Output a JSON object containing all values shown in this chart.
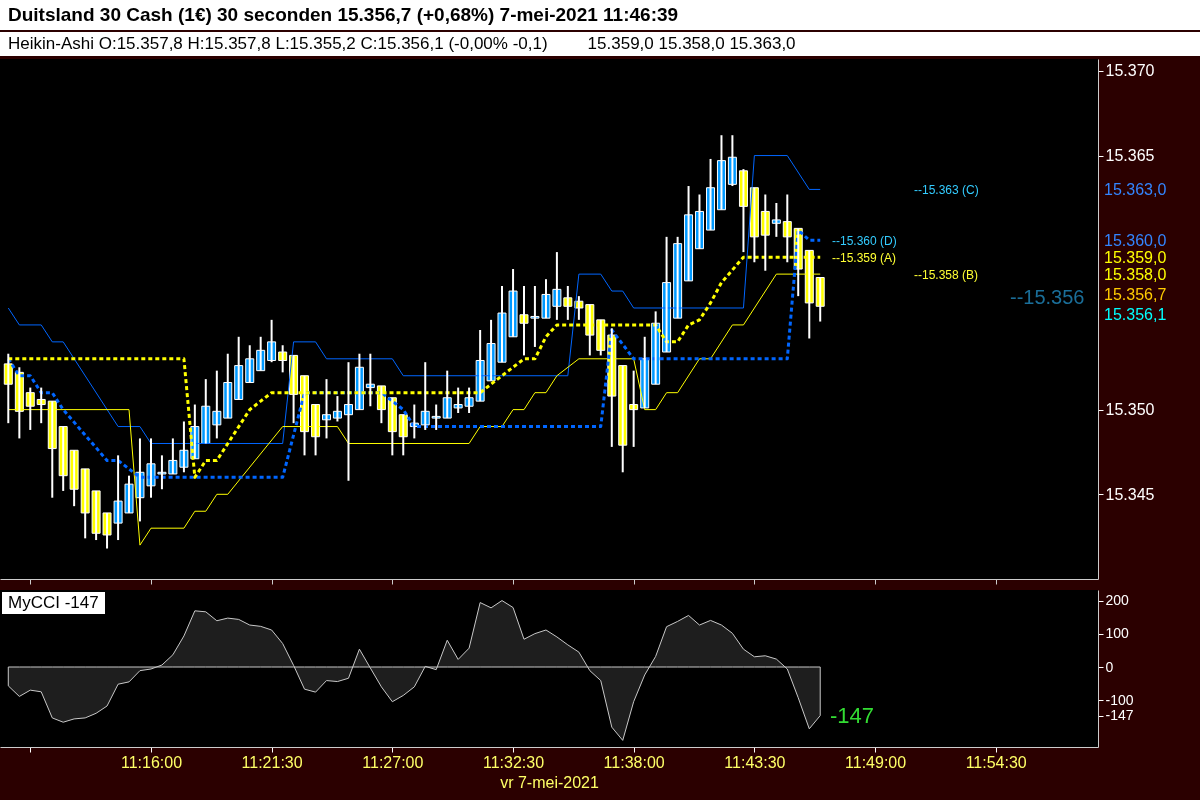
{
  "chart_data": [
    {
      "type": "candlestick",
      "title": "Duitsland 30 Cash (1€) 30 seconden 15.356,7 (+0,68%) 7-mei-2021 11:46:39",
      "xlim": [
        11.152,
        11.986
      ],
      "ylim": [
        15340,
        15370.7
      ],
      "xticks": [
        {
          "value": 11.175,
          "label": null
        },
        {
          "value": 11.2667,
          "label": null
        },
        {
          "value": 11.3583,
          "label": null
        },
        {
          "value": 11.45,
          "label": null
        },
        {
          "value": 11.5417,
          "label": null
        },
        {
          "value": 11.6333,
          "label": null
        },
        {
          "value": 11.725,
          "label": null
        },
        {
          "value": 11.8167,
          "label": null
        },
        {
          "value": 11.9083,
          "label": null
        }
      ],
      "yticks": [
        {
          "value": 15345,
          "label": "15.345"
        },
        {
          "value": 15350,
          "label": "15.350"
        },
        {
          "value": 15365,
          "label": "15.365"
        },
        {
          "value": 15370,
          "label": "15.370"
        }
      ],
      "tick_labels": "y",
      "annotations": [
        "Heikin-Ashi O:15.357,8 H:15.357,8 L:15.355,2 C:15.356,1 (-0,00% -0,1)",
        "15.359,0 15.358,0 15.363,0",
        "--15.363 (C)",
        "--15.360 (D)",
        "--15.359 (A)",
        "--15.358 (B)",
        "--15.356",
        "15.363,0",
        "15.360,0",
        "15.359,0",
        "15.358,0",
        "15.356,7",
        "15.356,1"
      ],
      "series": [
        {
          "color": "#0099ff",
          "x": [
            11.2417,
            11.25,
            11.2583,
            11.2667,
            11.275,
            11.2833,
            11.2917,
            11.3,
            11.3083,
            11.3167,
            11.325,
            11.3333,
            11.3417,
            11.35,
            11.3583,
            11.4,
            11.4083,
            11.4167,
            11.425,
            11.4333,
            11.4667,
            11.475,
            11.4833,
            11.4917,
            11.5,
            11.5083,
            11.5167,
            11.525,
            11.5333,
            11.5417,
            11.5583,
            11.5667,
            11.575,
            11.6417,
            11.65,
            11.6583,
            11.6667,
            11.675,
            11.6833,
            11.6917,
            11.7,
            11.7083,
            11.7417
          ],
          "ohlc": [
            [
              15343.3,
              15347.3,
              15342.3,
              15344.6
            ],
            [
              15343.9,
              15346.1,
              15343.9,
              15345.6
            ],
            [
              15344.8,
              15348.3,
              15343.4,
              15346.3
            ],
            [
              15345.5,
              15348.3,
              15344.8,
              15346.8
            ],
            [
              15346.2,
              15347.3,
              15345.3,
              15346.3
            ],
            [
              15346.2,
              15348.3,
              15346.2,
              15347.0
            ],
            [
              15346.6,
              15349.3,
              15346.3,
              15347.6
            ],
            [
              15347.1,
              15350.3,
              15347.1,
              15349.0
            ],
            [
              15348.0,
              15351.8,
              15348.0,
              15350.2
            ],
            [
              15349.1,
              15352.3,
              15348.3,
              15349.9
            ],
            [
              15349.5,
              15353.3,
              15349.5,
              15351.6
            ],
            [
              15350.6,
              15354.3,
              15350.6,
              15352.6
            ],
            [
              15351.6,
              15353.8,
              15351.6,
              15353.0
            ],
            [
              15352.3,
              15354.3,
              15352.3,
              15353.5
            ],
            [
              15352.9,
              15355.3,
              15352.8,
              15354.0
            ],
            [
              15349.4,
              15351.8,
              15348.3,
              15349.7
            ],
            [
              15349.5,
              15350.8,
              15349.3,
              15349.9
            ],
            [
              15349.7,
              15352.8,
              15345.8,
              15350.3
            ],
            [
              15350.0,
              15353.3,
              15350.0,
              15352.5
            ],
            [
              15351.3,
              15353.3,
              15350.2,
              15351.5
            ],
            [
              15349.0,
              15350.3,
              15348.3,
              15349.2
            ],
            [
              15349.1,
              15352.8,
              15348.8,
              15349.9
            ],
            [
              15349.5,
              15350.3,
              15348.8,
              15349.6
            ],
            [
              15349.5,
              15352.3,
              15349.5,
              15350.7
            ],
            [
              15350.1,
              15351.3,
              15349.8,
              15350.3
            ],
            [
              15350.2,
              15351.3,
              15349.8,
              15350.7
            ],
            [
              15350.5,
              15354.7,
              15350.5,
              15352.9
            ],
            [
              15351.7,
              15355.3,
              15351.7,
              15353.9
            ],
            [
              15352.8,
              15357.3,
              15352.8,
              15355.7
            ],
            [
              15354.3,
              15358.3,
              15354.3,
              15357.0
            ],
            [
              15355.4,
              15357.3,
              15353.7,
              15355.5
            ],
            [
              15355.4,
              15357.7,
              15355.4,
              15356.8
            ],
            [
              15356.1,
              15359.3,
              15355.3,
              15357.1
            ],
            [
              15350.1,
              15354.3,
              15350.1,
              15353.0
            ],
            [
              15351.5,
              15355.8,
              15351.5,
              15355.1
            ],
            [
              15353.4,
              15360.2,
              15353.4,
              15357.5
            ],
            [
              15355.4,
              15360.2,
              15355.4,
              15359.8
            ],
            [
              15357.6,
              15363.2,
              15357.6,
              15361.5
            ],
            [
              15359.5,
              15362.7,
              15359.5,
              15361.7
            ],
            [
              15360.6,
              15364.8,
              15360.6,
              15363.1
            ],
            [
              15361.8,
              15366.2,
              15361.8,
              15364.7
            ],
            [
              15363.3,
              15366.2,
              15363.2,
              15364.9
            ],
            [
              15361.0,
              15362.2,
              15360.2,
              15361.2
            ]
          ]
        },
        {
          "color": "#ffff00",
          "x": [
            11.1583,
            11.1667,
            11.175,
            11.1833,
            11.1917,
            11.2,
            11.2083,
            11.2167,
            11.225,
            11.2333,
            11.3667,
            11.375,
            11.3833,
            11.3917,
            11.4417,
            11.45,
            11.4583,
            11.55,
            11.5833,
            11.5917,
            11.6,
            11.6083,
            11.6167,
            11.625,
            11.6333,
            11.7167,
            11.725,
            11.7333,
            11.75,
            11.7583,
            11.7667,
            11.775
          ],
          "ohlc": [
            [
              15352.7,
              15353.3,
              15349.2,
              15351.5
            ],
            [
              15352.2,
              15352.5,
              15348.3,
              15349.9
            ],
            [
              15351.0,
              15351.3,
              15348.8,
              15350.2
            ],
            [
              15350.6,
              15351.3,
              15349.2,
              15350.3
            ],
            [
              15350.5,
              15350.5,
              15344.8,
              15347.7
            ],
            [
              15349.0,
              15349.0,
              15345.2,
              15346.1
            ],
            [
              15347.6,
              15347.6,
              15344.3,
              15345.3
            ],
            [
              15346.5,
              15346.5,
              15342.4,
              15343.9
            ],
            [
              15345.2,
              15345.2,
              15342.3,
              15342.7
            ],
            [
              15343.9,
              15343.9,
              15341.8,
              15342.6
            ],
            [
              15353.4,
              15353.8,
              15352.2,
              15352.9
            ],
            [
              15353.2,
              15353.2,
              15349.2,
              15350.9
            ],
            [
              15352.0,
              15352.0,
              15347.3,
              15348.7
            ],
            [
              15350.3,
              15350.3,
              15347.3,
              15348.4
            ],
            [
              15351.4,
              15351.4,
              15349.2,
              15350.0
            ],
            [
              15350.7,
              15350.7,
              15347.3,
              15348.7
            ],
            [
              15349.7,
              15349.7,
              15347.3,
              15348.4
            ],
            [
              15355.6,
              15357.3,
              15353.2,
              15355.1
            ],
            [
              15356.6,
              15357.3,
              15355.3,
              15356.1
            ],
            [
              15356.4,
              15356.7,
              15355.3,
              15356.0
            ],
            [
              15356.2,
              15356.2,
              15353.2,
              15354.4
            ],
            [
              15355.3,
              15355.3,
              15353.2,
              15353.5
            ],
            [
              15354.4,
              15354.8,
              15347.8,
              15350.8
            ],
            [
              15352.6,
              15352.6,
              15346.3,
              15347.9
            ],
            [
              15350.3,
              15352.3,
              15347.8,
              15350.0
            ],
            [
              15364.1,
              15364.2,
              15359.3,
              15362.0
            ],
            [
              15363.1,
              15363.1,
              15358.7,
              15360.2
            ],
            [
              15361.7,
              15362.7,
              15358.2,
              15360.3
            ],
            [
              15361.1,
              15362.7,
              15358.7,
              15360.2
            ],
            [
              15360.7,
              15360.7,
              15356.7,
              15358.3
            ],
            [
              15359.4,
              15359.4,
              15354.2,
              15356.3
            ],
            [
              15357.8,
              15357.8,
              15355.2,
              15356.1
            ]
          ]
        },
        {
          "type": "line",
          "color": "#0066ff",
          "line_style": "solid",
          "x": [
            11.1583,
            11.1667,
            11.1833,
            11.1917,
            11.2,
            11.2417,
            11.2583,
            11.2667,
            11.3667,
            11.375,
            11.3917,
            11.4,
            11.45,
            11.4583,
            11.5833,
            11.5917,
            11.6083,
            11.6167,
            11.625,
            11.6333,
            11.7167,
            11.725,
            11.75,
            11.7667,
            11.775
          ],
          "values": [
            15356,
            15355,
            15355,
            15354,
            15354,
            15349,
            15349,
            15348,
            15348,
            15354,
            15354,
            15353,
            15353,
            15352,
            15352,
            15358,
            15358,
            15357,
            15357,
            15356,
            15356,
            15365,
            15365,
            15363,
            15363
          ]
        },
        {
          "type": "line",
          "color": "#ffff00",
          "line_style": "solid",
          "x": [
            11.1583,
            11.25,
            11.2583,
            11.2667,
            11.2917,
            11.3,
            11.3083,
            11.3167,
            11.325,
            11.3667,
            11.4083,
            11.4167,
            11.5083,
            11.5167,
            11.5333,
            11.5417,
            11.55,
            11.5583,
            11.5667,
            11.575,
            11.5917,
            11.6333,
            11.6417,
            11.65,
            11.6583,
            11.6667,
            11.6833,
            11.6917,
            11.7083,
            11.7167,
            11.7417,
            11.775
          ],
          "values": [
            15350,
            15350,
            15342,
            15343,
            15343,
            15344,
            15344,
            15345,
            15345,
            15349,
            15349,
            15348,
            15348,
            15349,
            15349,
            15350,
            15350,
            15351,
            15351,
            15352,
            15353,
            15353,
            15350,
            15350,
            15351,
            15351,
            15353,
            15353,
            15355,
            15355,
            15358,
            15358
          ]
        },
        {
          "type": "line",
          "color": "#0066ff",
          "line_style": "dashed",
          "x": [
            11.1583,
            11.1667,
            11.175,
            11.1833,
            11.1917,
            11.2,
            11.2333,
            11.2417,
            11.2583,
            11.3667,
            11.3833,
            11.4417,
            11.4583,
            11.4667,
            11.6083,
            11.6167,
            11.6333,
            11.75,
            11.7583,
            11.7667,
            11.775
          ],
          "values": [
            15353,
            15352,
            15352,
            15351,
            15351,
            15350,
            15347,
            15347,
            15346,
            15346,
            15351,
            15351,
            15350,
            15349,
            15349,
            15354.7,
            15353,
            15353,
            15360.6,
            15360,
            15360
          ]
        },
        {
          "type": "line",
          "color": "#ffff00",
          "line_style": "dashed",
          "x": [
            11.1583,
            11.2917,
            11.3,
            11.3083,
            11.3167,
            11.3417,
            11.3583,
            11.5167,
            11.5333,
            11.5417,
            11.55,
            11.5583,
            11.5667,
            11.575,
            11.65,
            11.6583,
            11.6667,
            11.675,
            11.6833,
            11.6917,
            11.7,
            11.7167,
            11.775
          ],
          "values": [
            15353,
            15353,
            15346,
            15347,
            15347,
            15350,
            15351,
            15351,
            15352,
            15352.5,
            15353,
            15353,
            15354.3,
            15355,
            15355,
            15354,
            15354,
            15355,
            15355.3,
            15356.3,
            15357.5,
            15359,
            15359
          ]
        }
      ]
    },
    {
      "type": "area",
      "xlabel": "vr 7-mei-2021",
      "color": "#c8c8c8",
      "xlim": [
        11.152,
        11.986
      ],
      "ylim": [
        -242,
        233
      ],
      "xticks": [
        {
          "value": 11.175,
          "label": null
        },
        {
          "value": 11.2667,
          "label": "11:16:00"
        },
        {
          "value": 11.3583,
          "label": "11:21:30"
        },
        {
          "value": 11.45,
          "label": "11:27:00"
        },
        {
          "value": 11.5417,
          "label": "11:32:30"
        },
        {
          "value": 11.6333,
          "label": "11:38:00"
        },
        {
          "value": 11.725,
          "label": "11:43:30"
        },
        {
          "value": 11.8167,
          "label": "11:49:00"
        },
        {
          "value": 11.9083,
          "label": "11:54:30"
        }
      ],
      "yticks": [
        200,
        100,
        0,
        -100,
        {
          "value": -147,
          "label": "-147"
        }
      ],
      "annotations": [
        "MyCCI -147",
        "-147"
      ],
      "x": [
        11.1583,
        11.1667,
        11.175,
        11.1833,
        11.1917,
        11.2,
        11.2083,
        11.2167,
        11.225,
        11.2333,
        11.2417,
        11.25,
        11.2583,
        11.2667,
        11.275,
        11.2833,
        11.2917,
        11.3,
        11.3083,
        11.3167,
        11.325,
        11.3333,
        11.3417,
        11.35,
        11.3583,
        11.3667,
        11.375,
        11.3833,
        11.3917,
        11.4,
        11.4083,
        11.4167,
        11.425,
        11.4333,
        11.4417,
        11.45,
        11.4583,
        11.4667,
        11.475,
        11.4833,
        11.4917,
        11.5,
        11.5083,
        11.5167,
        11.525,
        11.5333,
        11.5417,
        11.55,
        11.5583,
        11.5667,
        11.575,
        11.5833,
        11.5917,
        11.6,
        11.6083,
        11.6167,
        11.625,
        11.6333,
        11.6417,
        11.65,
        11.6583,
        11.6667,
        11.675,
        11.6833,
        11.6917,
        11.7,
        11.7083,
        11.7167,
        11.725,
        11.7333,
        11.7417,
        11.75,
        11.7583,
        11.7667,
        11.775
      ],
      "values": [
        -57,
        -89,
        -70,
        -75,
        -154,
        -167,
        -157,
        -154,
        -140,
        -118,
        -52,
        -45,
        -11,
        -6,
        6,
        37,
        94,
        170,
        167,
        140,
        148,
        144,
        127,
        123,
        112,
        71,
        5,
        -67,
        -76,
        -41,
        -44,
        -34,
        54,
        -3,
        -60,
        -105,
        -86,
        -60,
        2,
        -8,
        81,
        23,
        57,
        195,
        179,
        201,
        180,
        84,
        101,
        112,
        91,
        67,
        45,
        -11,
        -41,
        -182,
        -222,
        -105,
        -24,
        32,
        122,
        138,
        156,
        127,
        141,
        127,
        102,
        54,
        31,
        34,
        24,
        -6,
        -93,
        -187,
        -147
      ]
    }
  ]
}
